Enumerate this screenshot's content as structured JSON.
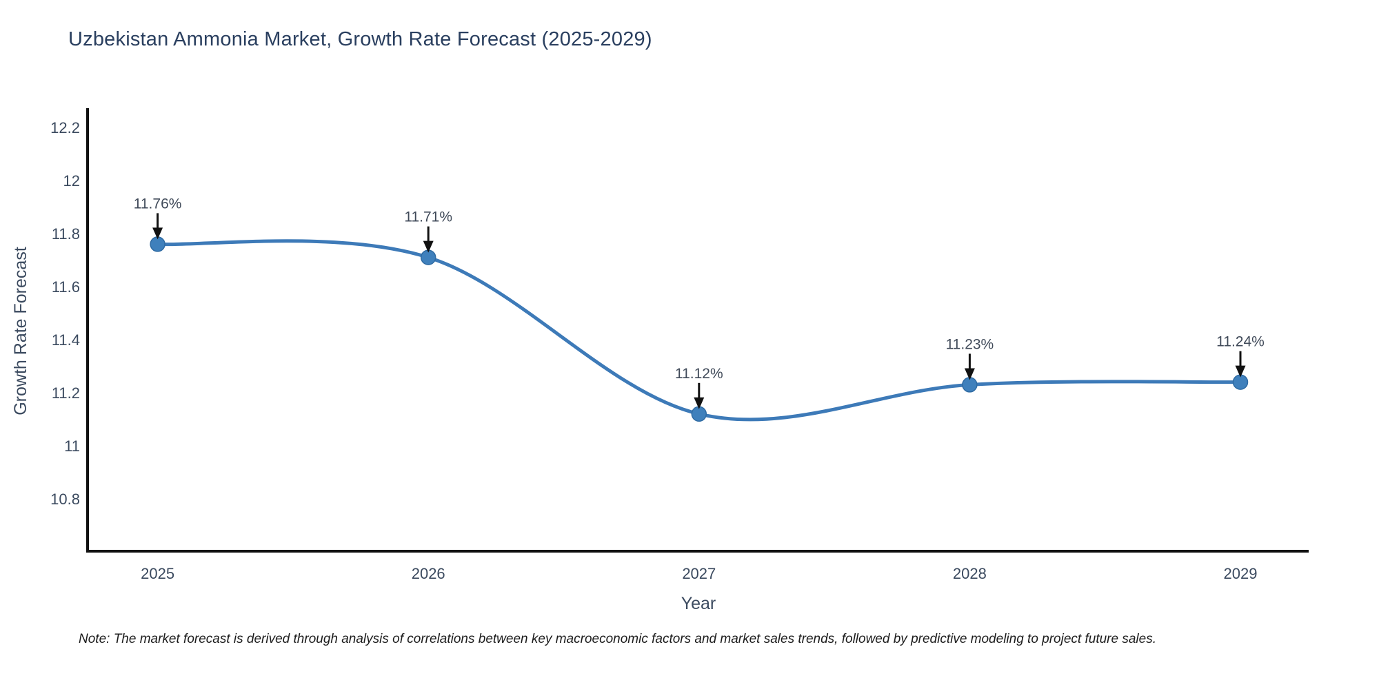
{
  "title": "Uzbekistan Ammonia Market, Growth Rate Forecast (2025-2029)",
  "note": "Note: The market forecast is derived through analysis of correlations between key macroeconomic factors and market sales trends, followed by predictive modeling to project future sales.",
  "chart_data": {
    "type": "line",
    "line_shape": "spline",
    "title": "Uzbekistan Ammonia Market, Growth Rate Forecast (2025-2029)",
    "xlabel": "Year",
    "ylabel": "Growth Rate Forecast",
    "x": [
      2025,
      2026,
      2027,
      2028,
      2029
    ],
    "categories": [
      "2025",
      "2026",
      "2027",
      "2028",
      "2029"
    ],
    "values": [
      11.76,
      11.71,
      11.12,
      11.23,
      11.24
    ],
    "point_labels": [
      "11.76%",
      "11.71%",
      "11.12%",
      "11.23%",
      "11.24%"
    ],
    "yticks": [
      10.8,
      11,
      11.2,
      11.4,
      11.6,
      11.8,
      12,
      12.2
    ],
    "ytick_labels": [
      "10.8",
      "11",
      "11.2",
      "11.4",
      "11.6",
      "11.8",
      "12",
      "12.2"
    ],
    "ylim": [
      10.6,
      12.27
    ],
    "grid": false,
    "legend": "none",
    "annotations_have_arrows": true,
    "colors": {
      "line": "#3d7ab8",
      "marker": "#3f80bc",
      "marker_edge": "#2f6ba3",
      "axis": "#111111",
      "tick_text": "#3b4a5f",
      "title_text": "#2a3f5f",
      "axis_title_text": "#3b4a5f",
      "annotation_text": "#404a59",
      "arrow": "#111111",
      "note_text": "#1c1c1c",
      "background": "#ffffff"
    }
  }
}
